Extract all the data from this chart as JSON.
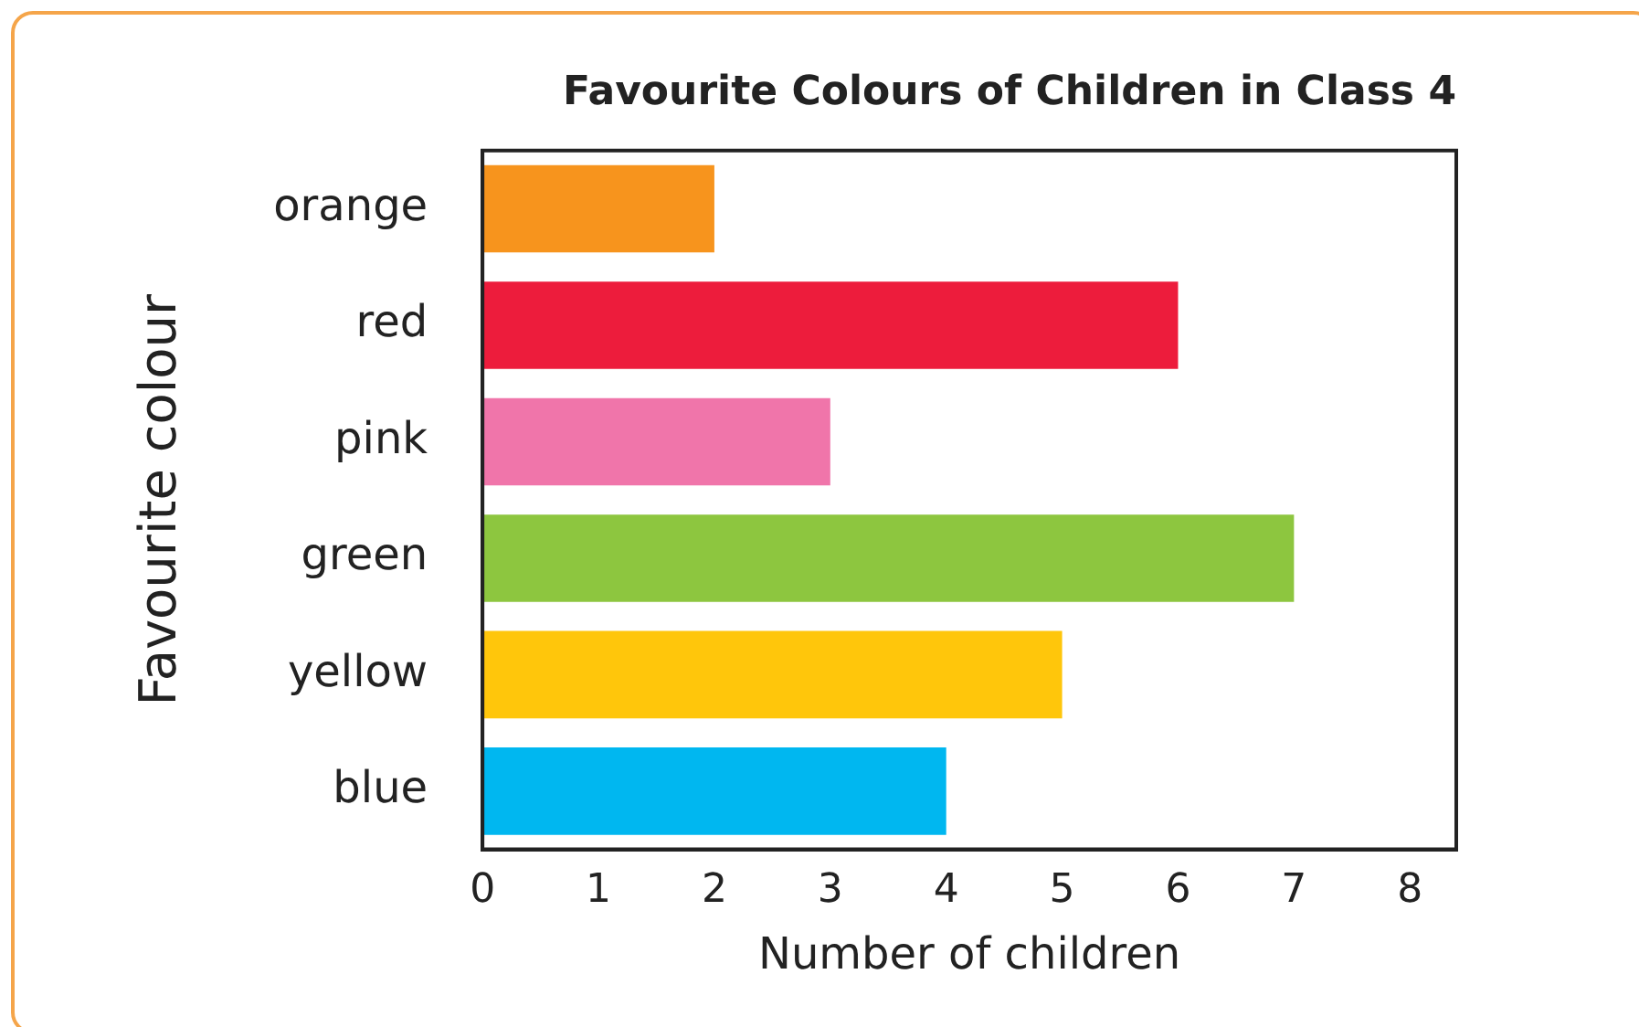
{
  "chart_data": {
    "type": "bar",
    "orientation": "horizontal",
    "title": "Favourite Colours of Children in Class 4",
    "xlabel": "Number of children",
    "ylabel": "Favourite colour",
    "categories": [
      "orange",
      "red",
      "pink",
      "green",
      "yellow",
      "blue"
    ],
    "values": [
      2,
      6,
      3,
      7,
      5,
      4
    ],
    "colors": [
      "#f7941d",
      "#ed1c3c",
      "#f075aa",
      "#8dc63f",
      "#ffc60b",
      "#00b7f0"
    ],
    "xlim": [
      0,
      8.4
    ],
    "xticks": [
      0,
      1,
      2,
      3,
      4,
      5,
      6,
      7,
      8
    ],
    "grid": false,
    "legend": false
  }
}
